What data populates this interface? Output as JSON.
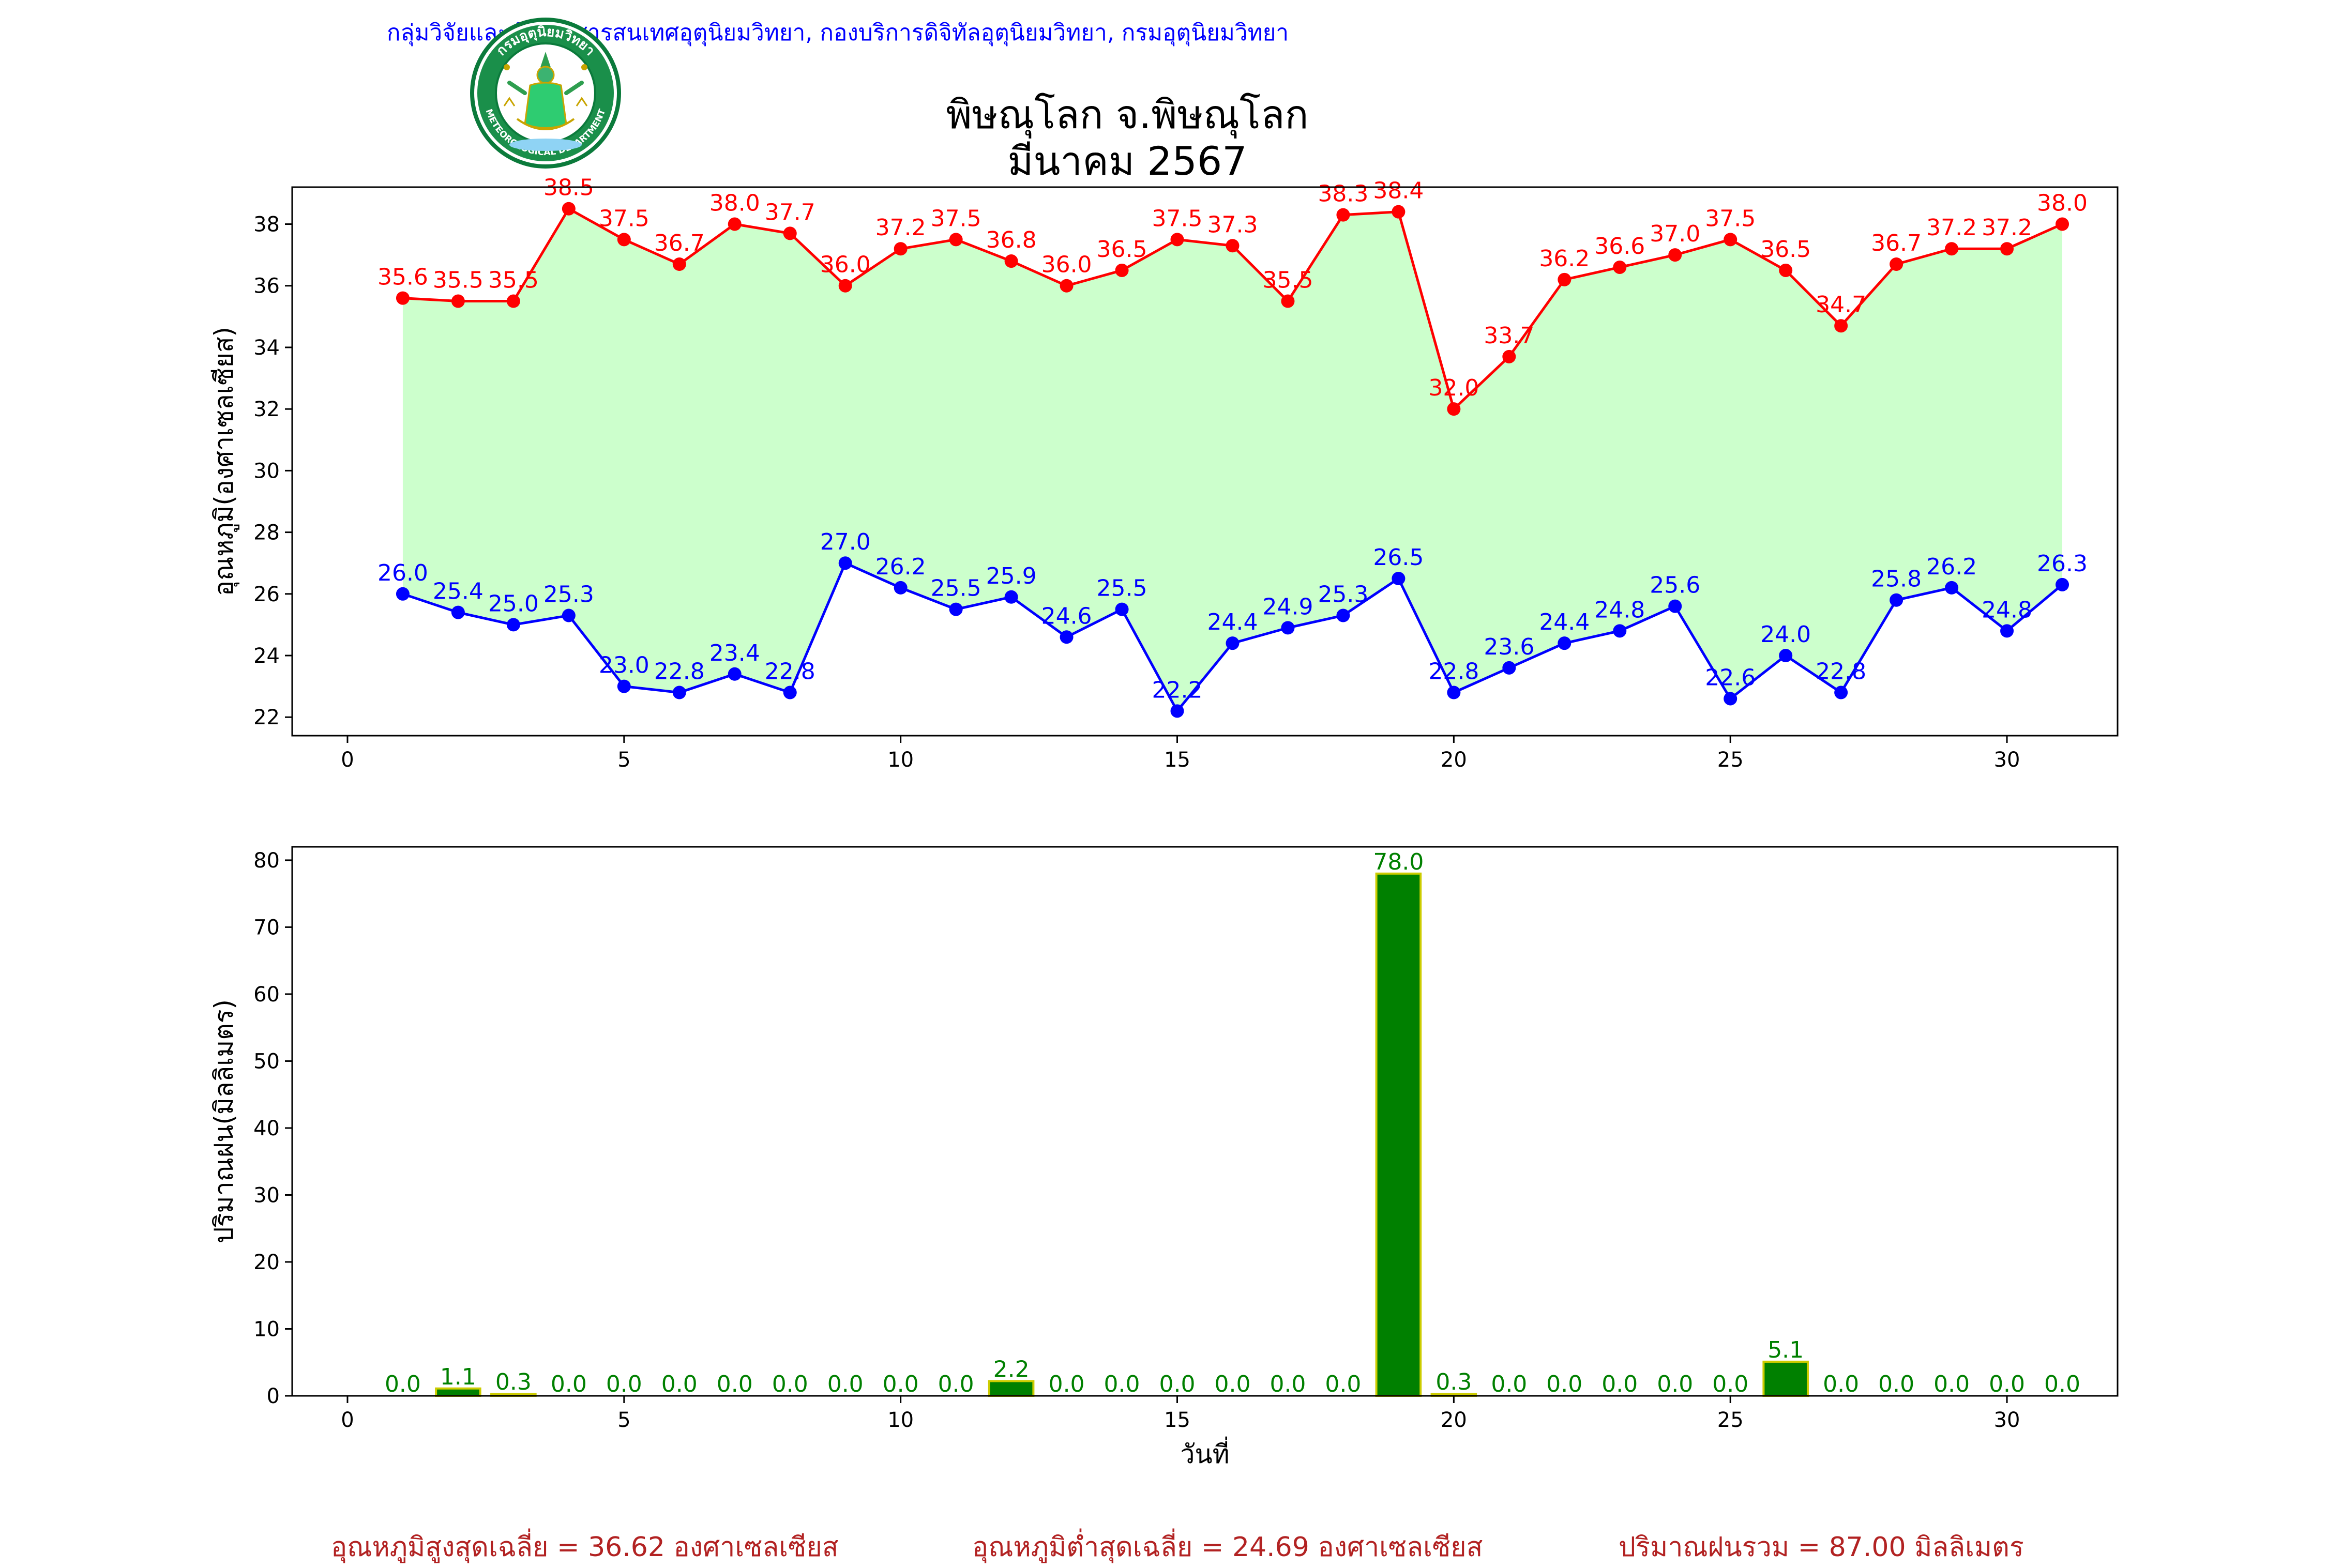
{
  "header": {
    "org": "กลุ่มวิจัยและพัฒนาสารสนเทศอุตุนิยมวิทยา, กองบริการดิจิทัลอุตุนิยมวิทยา, กรมอุตุนิยมวิทยา",
    "title_line1": "พิษณุโลก จ.พิษณุโลก",
    "title_line2": "มีนาคม 2567",
    "logo_text": "กรมอุตุนิยมวิทยา",
    "logo_text_bottom": "METEOROLOGICAL DEPARTMENT"
  },
  "chart_data": [
    {
      "type": "line",
      "ylabel": "อุณหภูมิ(องศาเซลเซียส)",
      "xlabel": "",
      "xlim": [
        -1,
        32
      ],
      "ylim": [
        21.4,
        39.2
      ],
      "xticks": [
        0,
        5,
        10,
        15,
        20,
        25,
        30
      ],
      "yticks": [
        22,
        24,
        26,
        28,
        30,
        32,
        34,
        36,
        38
      ],
      "x": [
        1,
        2,
        3,
        4,
        5,
        6,
        7,
        8,
        9,
        10,
        11,
        12,
        13,
        14,
        15,
        16,
        17,
        18,
        19,
        20,
        21,
        22,
        23,
        24,
        25,
        26,
        27,
        28,
        29,
        30,
        31
      ],
      "fill_between": {
        "color": "#ccffcc"
      },
      "series": [
        {
          "key": "max",
          "color": "#ff0000",
          "values": [
            35.6,
            35.5,
            35.5,
            38.5,
            37.5,
            36.7,
            38.0,
            37.7,
            36.0,
            37.2,
            37.5,
            36.8,
            36.0,
            36.5,
            37.5,
            37.3,
            35.5,
            38.3,
            38.4,
            32.0,
            33.7,
            36.2,
            36.6,
            37.0,
            37.5,
            36.5,
            34.7,
            36.7,
            37.2,
            37.2,
            38.0
          ]
        },
        {
          "key": "min",
          "color": "#0000ff",
          "values": [
            26.0,
            25.4,
            25.0,
            25.3,
            23.0,
            22.8,
            23.4,
            22.8,
            27.0,
            26.2,
            25.5,
            25.9,
            24.6,
            25.5,
            22.2,
            24.4,
            24.9,
            25.3,
            26.5,
            22.8,
            23.6,
            24.4,
            24.8,
            25.6,
            22.6,
            24.0,
            22.8,
            25.8,
            26.2,
            24.8,
            26.3
          ]
        }
      ]
    },
    {
      "type": "bar",
      "ylabel": "ปริมาณฝน(มิลลิเมตร)",
      "xlabel": "วันที่",
      "xlim": [
        -1,
        32
      ],
      "ylim": [
        0,
        82
      ],
      "xticks": [
        0,
        5,
        10,
        15,
        20,
        25,
        30
      ],
      "yticks": [
        0,
        10,
        20,
        30,
        40,
        50,
        60,
        70,
        80
      ],
      "x": [
        1,
        2,
        3,
        4,
        5,
        6,
        7,
        8,
        9,
        10,
        11,
        12,
        13,
        14,
        15,
        16,
        17,
        18,
        19,
        20,
        21,
        22,
        23,
        24,
        25,
        26,
        27,
        28,
        29,
        30,
        31
      ],
      "color": "#008000",
      "edge_color": "#cccc00",
      "label_color": "#008000",
      "values": [
        0.0,
        1.1,
        0.3,
        0.0,
        0.0,
        0.0,
        0.0,
        0.0,
        0.0,
        0.0,
        0.0,
        2.2,
        0.0,
        0.0,
        0.0,
        0.0,
        0.0,
        0.0,
        78.0,
        0.3,
        0.0,
        0.0,
        0.0,
        0.0,
        0.0,
        5.1,
        0.0,
        0.0,
        0.0,
        0.0,
        0.0
      ]
    }
  ],
  "footer": {
    "avg_max": "อุณหภูมิสูงสุดเฉลี่ย = 36.62 องศาเซลเซียส",
    "avg_min": "อุณหภูมิต่ำสุดเฉลี่ย = 24.69 องศาเซลเซียส",
    "total_rain": "ปริมาณฝนรวม = 87.00 มิลลิเมตร"
  }
}
